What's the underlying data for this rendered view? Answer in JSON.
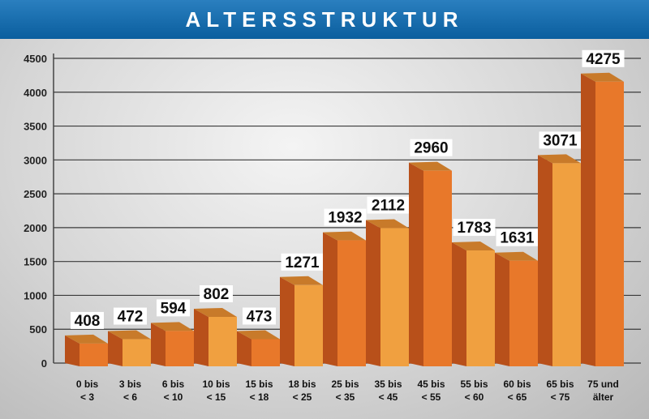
{
  "chart_data": {
    "type": "bar",
    "title": "ALTERSSTRUKTUR",
    "categories": [
      [
        "0 bis",
        "< 3"
      ],
      [
        "3 bis",
        "< 6"
      ],
      [
        "6 bis",
        "< 10"
      ],
      [
        "10 bis",
        "< 15"
      ],
      [
        "15 bis",
        "< 18"
      ],
      [
        "18 bis",
        "< 25"
      ],
      [
        "25 bis",
        "< 35"
      ],
      [
        "35 bis",
        "< 45"
      ],
      [
        "45 bis",
        "< 55"
      ],
      [
        "55 bis",
        "< 60"
      ],
      [
        "60 bis",
        "< 65"
      ],
      [
        "65 bis",
        "< 75"
      ],
      [
        "75 und",
        "älter"
      ]
    ],
    "values": [
      408,
      472,
      594,
      802,
      473,
      1271,
      1932,
      2112,
      2960,
      1783,
      1631,
      3071,
      4275
    ],
    "ylim": [
      0,
      4500
    ],
    "yticks": [
      0,
      500,
      1000,
      1500,
      2000,
      2500,
      3000,
      3500,
      4000,
      4500
    ],
    "grid": true,
    "colors": {
      "header": "#0a5e9e",
      "bar_front": "#e8782a",
      "bar_front_alt": "#f0a040",
      "bar_side": "#b8501a",
      "bar_top": "#c87a2a",
      "label_bg": "#ffffff"
    }
  }
}
